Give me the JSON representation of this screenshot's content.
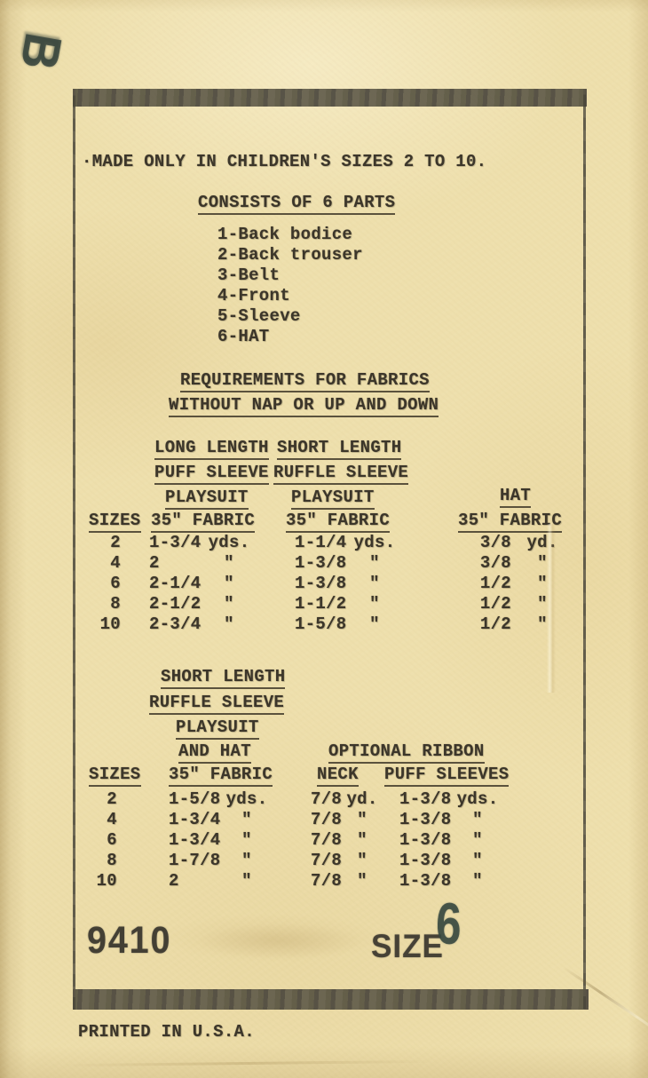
{
  "colors": {
    "paper": "#eedfac",
    "ink": "#3c362a",
    "stamp_ink": "#36463e",
    "frame": "#4f4b3c"
  },
  "stamp": {
    "letter": "B"
  },
  "notice": {
    "text": "·MADE ONLY IN CHILDREN'S SIZES 2 TO 10."
  },
  "parts": {
    "title": "CONSISTS OF 6 PARTS",
    "items": [
      "1-Back bodice",
      "2-Back trouser",
      "3-Belt",
      "4-Front",
      "5-Sleeve",
      "6-HAT"
    ]
  },
  "requirements": {
    "line1": "REQUIREMENTS FOR FABRICS",
    "line2": "WITHOUT NAP OR UP AND DOWN"
  },
  "table1": {
    "col1_header": [
      "LONG LENGTH",
      "PUFF SLEEVE",
      "PLAYSUIT"
    ],
    "col2_header": [
      "SHORT LENGTH",
      "RUFFLE SLEEVE",
      "PLAYSUIT"
    ],
    "col3_header": "HAT",
    "sizes_label": "SIZES",
    "fabric_label": "35\" FABRIC",
    "rows": [
      [
        "2",
        "1-3/4",
        "yds.",
        "1-1/4",
        "yds.",
        "3/8",
        "yd."
      ],
      [
        "4",
        "2",
        "\"",
        "1-3/8",
        "\"",
        "3/8",
        "\""
      ],
      [
        "6",
        "2-1/4",
        "\"",
        "1-3/8",
        "\"",
        "1/2",
        "\""
      ],
      [
        "8",
        "2-1/2",
        "\"",
        "1-1/2",
        "\"",
        "1/2",
        "\""
      ],
      [
        "10",
        "2-3/4",
        "\"",
        "1-5/8",
        "\"",
        "1/2",
        "\""
      ]
    ]
  },
  "table2": {
    "header_lines": [
      "SHORT LENGTH",
      "RUFFLE SLEEVE",
      "PLAYSUIT",
      "AND HAT"
    ],
    "optional_title": "OPTIONAL RIBBON",
    "sizes_label": "SIZES",
    "fabric_label": "35\" FABRIC",
    "neck_label": "NECK",
    "puff_label": "PUFF SLEEVES",
    "rows": [
      [
        "2",
        "1-5/8",
        "yds.",
        "7/8",
        "yd.",
        "1-3/8",
        "yds."
      ],
      [
        "4",
        "1-3/4",
        "\"",
        "7/8",
        "\"",
        "1-3/8",
        "\""
      ],
      [
        "6",
        "1-3/4",
        "\"",
        "7/8",
        "\"",
        "1-3/8",
        "\""
      ],
      [
        "8",
        "1-7/8",
        "\"",
        "7/8",
        "\"",
        "1-3/8",
        "\""
      ],
      [
        "10",
        "2",
        "\"",
        "7/8",
        "\"",
        "1-3/8",
        "\""
      ]
    ]
  },
  "footer": {
    "pattern_number": "9410",
    "size_label": "SIZE",
    "size_value": "6"
  },
  "printed_note": "PRINTED IN U.S.A."
}
